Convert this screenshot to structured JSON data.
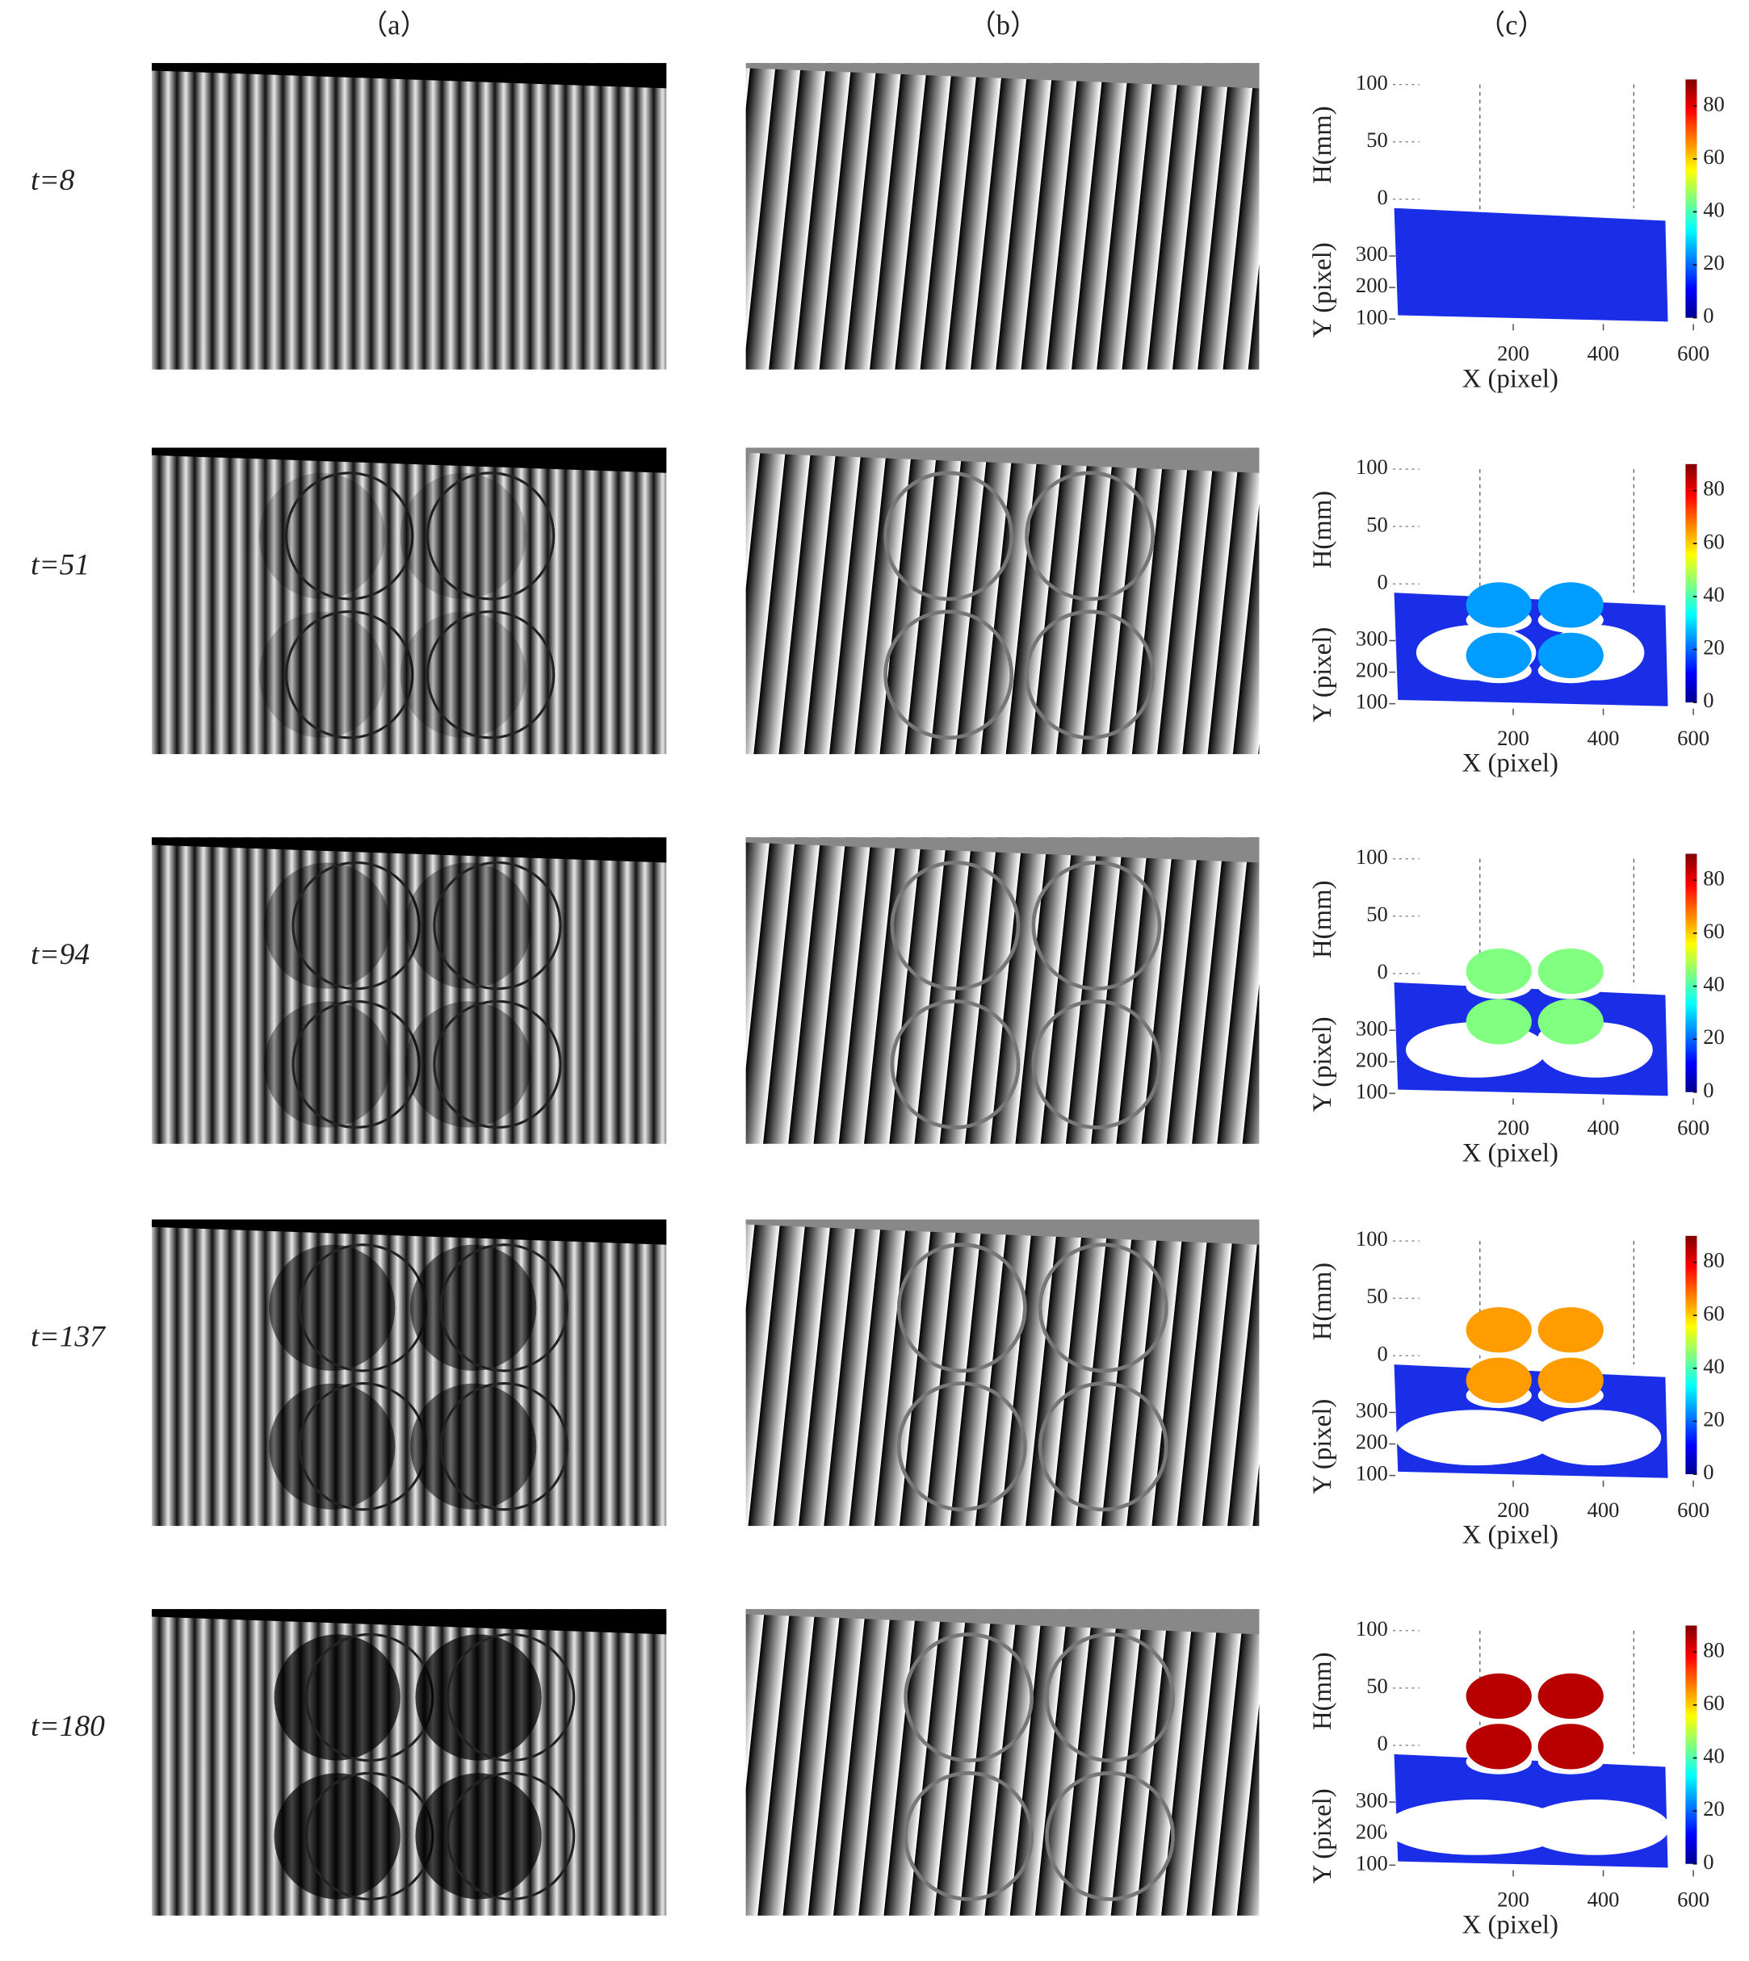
{
  "columns": [
    "（a）",
    "（b）",
    "（c）"
  ],
  "rows": [
    {
      "label": "t=8",
      "disc_height": null
    },
    {
      "label": "t=51",
      "disc_height": 25
    },
    {
      "label": "t=94",
      "disc_height": 45
    },
    {
      "label": "t=137",
      "disc_height": 65
    },
    {
      "label": "t=180",
      "disc_height": 85
    }
  ],
  "plot": {
    "h_label": "H(mm)",
    "y_label": "Y (pixel)",
    "x_label": "X (pixel)",
    "h_ticks": [
      100,
      50,
      0
    ],
    "y_ticks": [
      300,
      200,
      100
    ],
    "x_ticks": [
      200,
      400,
      600
    ],
    "colorbar_ticks": [
      80,
      60,
      40,
      20,
      0
    ],
    "clim": [
      0,
      90
    ]
  }
}
